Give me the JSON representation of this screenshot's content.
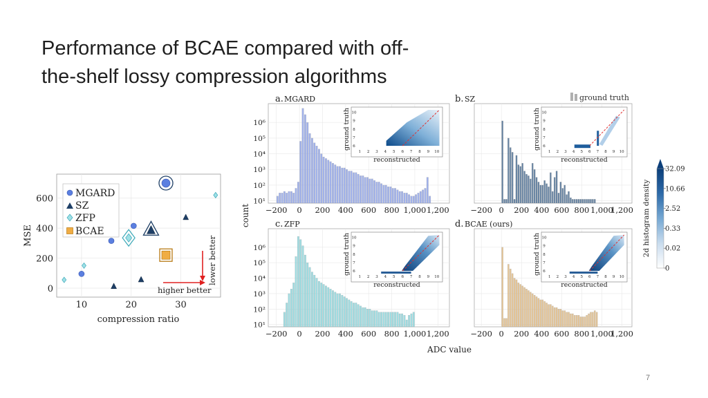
{
  "slide": {
    "title": "Performance of BCAE compared with off-the-shelf lossy compression algorithms",
    "page_number": "7"
  },
  "chart_data": [
    {
      "type": "scatter",
      "xlabel": "compression ratio",
      "ylabel": "MSE",
      "xlim": [
        5,
        38
      ],
      "ylim": [
        -60,
        760
      ],
      "xticks": [
        "10",
        "20",
        "30"
      ],
      "yticks": [
        "0",
        "200",
        "400",
        "600"
      ],
      "grid": true,
      "legend_position": "top-left",
      "annotations": {
        "lower_better": "lower better",
        "higher_better": "higher better"
      },
      "series": [
        {
          "name": "MGARD",
          "marker": "circle",
          "color": "#5b7fe0",
          "x": [
            10,
            16,
            20.5,
            27
          ],
          "y": [
            95,
            315,
            415,
            700
          ],
          "highlight_index": 3
        },
        {
          "name": "SZ",
          "marker": "triangle",
          "color": "#1e3f66",
          "x": [
            16.5,
            22,
            24,
            31
          ],
          "y": [
            10,
            55,
            385,
            470
          ],
          "highlight_index": 2
        },
        {
          "name": "ZFP",
          "marker": "diamond",
          "color": "#7fd3df",
          "x": [
            6.5,
            10.5,
            19.5,
            37
          ],
          "y": [
            55,
            150,
            335,
            620
          ],
          "highlight_index": 2
        },
        {
          "name": "BCAE",
          "marker": "square",
          "color": "#f0ad44",
          "x": [
            27
          ],
          "y": [
            220
          ],
          "highlight_index": 0
        }
      ]
    },
    {
      "type": "bar",
      "panel_label": "a.",
      "method": "MGARD",
      "color": "#8fa3e6",
      "xlim": [
        -270,
        1300
      ],
      "ylim_log10": [
        0,
        6
      ],
      "xticks": [
        "−200",
        "0",
        "200",
        "400",
        "600",
        "800",
        "1,000",
        "1,200"
      ],
      "yticks": [
        "10¹",
        "10²",
        "10³",
        "10⁴",
        "10⁵",
        "10⁶"
      ],
      "bin_width": 20,
      "bin_start": -200,
      "log10_counts": [
        0.3,
        0.5,
        0.5,
        0.6,
        0.5,
        0.6,
        0.6,
        0.5,
        0.8,
        1.2,
        3.8,
        5.9,
        5.5,
        5.0,
        4.3,
        4.0,
        3.7,
        3.5,
        3.3,
        3.0,
        2.8,
        2.7,
        2.6,
        2.5,
        2.4,
        2.3,
        2.2,
        2.2,
        2.1,
        2.1,
        2.0,
        1.9,
        1.9,
        1.8,
        1.8,
        1.7,
        1.6,
        1.6,
        1.5,
        1.5,
        1.4,
        1.4,
        1.3,
        1.2,
        1.2,
        1.1,
        1.0,
        1.0,
        0.9,
        0.9,
        0.8,
        0.8,
        0.7,
        0.6,
        0.6,
        0.5,
        0.5,
        0.4,
        0.3,
        0.3,
        0.4,
        0.5,
        0.6,
        0.7,
        0.8,
        1.5,
        0.3
      ],
      "inset": {
        "xlabel": "reconstructed",
        "ylabel": "ground truth",
        "ticks": [
          "1",
          "2",
          "3",
          "4",
          "5",
          "6",
          "7",
          "8",
          "9",
          "10"
        ],
        "yticks": [
          "6",
          "7",
          "8",
          "9",
          "10"
        ],
        "spread": "wide"
      }
    },
    {
      "type": "bar",
      "panel_label": "b.",
      "method": "SZ",
      "color": "#4c6f93",
      "legend": "ground truth",
      "xlim": [
        -270,
        1300
      ],
      "ylim_log10": [
        0,
        6
      ],
      "xticks": [
        "−200",
        "0",
        "200",
        "400",
        "600",
        "800",
        "1,000",
        "1,200"
      ],
      "yticks": [],
      "bin_width": 20,
      "bin_start": 0,
      "log10_counts": [
        5.1,
        0.1,
        0.1,
        4.0,
        3.4,
        3.1,
        0.1,
        2.9,
        2.3,
        2.2,
        2.4,
        1.9,
        1.7,
        1.6,
        1.4,
        2.4,
        2.0,
        1.5,
        1.2,
        1.0,
        1.0,
        1.3,
        1.1,
        0.9,
        1.8,
        0.6,
        1.5,
        1.9,
        0.5,
        1.2,
        0.8,
        1.0,
        0.4,
        0.6,
        0.2,
        0.1,
        0.1,
        0.1,
        0.1,
        0.1,
        0.1,
        0.1,
        0.1,
        0.1,
        0.1,
        0.1,
        0.1
      ],
      "inset": {
        "xlabel": "reconstructed",
        "ylabel": "ground truth",
        "ticks": [
          "1",
          "2",
          "3",
          "4",
          "5",
          "6",
          "7",
          "8",
          "9",
          "10"
        ],
        "yticks": [
          "6",
          "7",
          "8",
          "9",
          "10"
        ],
        "spread": "sparse"
      }
    },
    {
      "type": "bar",
      "panel_label": "c.",
      "method": "ZFP",
      "color": "#8ed6dc",
      "xlim": [
        -270,
        1300
      ],
      "ylim_log10": [
        0,
        6
      ],
      "xticks": [
        "−200",
        "0",
        "200",
        "400",
        "600",
        "800",
        "1,000",
        "1,200"
      ],
      "yticks": [
        "10¹",
        "10²",
        "10³",
        "10⁴",
        "10⁵",
        "10⁶"
      ],
      "bin_width": 20,
      "bin_start": -140,
      "log10_counts": [
        0.8,
        1.4,
        2.0,
        2.3,
        2.7,
        4.4,
        5.7,
        5.5,
        5.1,
        4.5,
        4.0,
        3.7,
        3.4,
        3.2,
        3.0,
        2.8,
        2.7,
        2.6,
        2.5,
        2.4,
        2.3,
        2.2,
        2.1,
        2.0,
        2.0,
        1.9,
        1.8,
        1.7,
        1.6,
        1.5,
        1.4,
        1.4,
        1.3,
        1.2,
        1.1,
        1.1,
        1.0,
        1.0,
        0.9,
        0.9,
        0.9,
        0.8,
        0.8,
        0.8,
        0.8,
        0.8,
        0.8,
        0.8,
        0.8,
        0.8,
        0.7,
        0.7,
        0.6,
        0.3,
        0.6,
        0.7,
        0.8
      ],
      "inset": {
        "xlabel": "reconstructed",
        "ylabel": "ground truth",
        "ticks": [
          "1",
          "2",
          "3",
          "4",
          "5",
          "6",
          "7",
          "8",
          "9",
          "10"
        ],
        "yticks": [
          "6",
          "7",
          "8",
          "9",
          "10"
        ],
        "spread": "narrow"
      }
    },
    {
      "type": "bar",
      "panel_label": "d.",
      "method": "BCAE (ours)",
      "color": "#e1bb84",
      "xlim": [
        -270,
        1300
      ],
      "ylim_log10": [
        0,
        6
      ],
      "xticks": [
        "−200",
        "0",
        "200",
        "400",
        "600",
        "800",
        "1,000",
        "1,200"
      ],
      "yticks": [],
      "bin_width": 20,
      "bin_start": 0,
      "log10_counts": [
        5.0,
        0.4,
        0.4,
        3.9,
        3.6,
        3.3,
        3.0,
        2.9,
        2.7,
        2.6,
        2.5,
        2.4,
        2.3,
        2.2,
        2.1,
        2.0,
        1.9,
        1.8,
        1.7,
        1.6,
        1.6,
        1.5,
        1.4,
        1.3,
        1.3,
        1.2,
        1.1,
        1.1,
        1.0,
        1.0,
        0.9,
        0.9,
        0.8,
        0.8,
        0.7,
        0.7,
        0.6,
        0.6,
        0.6,
        0.5,
        0.5,
        0.5,
        0.6,
        0.7,
        0.8,
        0.8,
        0.9,
        0.8
      ],
      "inset": {
        "xlabel": "reconstructed",
        "ylabel": "ground truth",
        "ticks": [
          "1",
          "2",
          "3",
          "4",
          "5",
          "6",
          "7",
          "8",
          "9",
          "10"
        ],
        "yticks": [
          "6",
          "7",
          "8",
          "9",
          "10"
        ],
        "spread": "narrow"
      }
    }
  ],
  "shared": {
    "histogram_ylabel": "count",
    "histogram_xlabel": "ADC value",
    "colorbar": {
      "label": "2d histogram density",
      "ticks": [
        "0",
        "0.02",
        "0.33",
        "2.52",
        "10.66",
        "32.09"
      ],
      "color_low": "#ffffff",
      "color_high": "#0c3f7a"
    }
  }
}
